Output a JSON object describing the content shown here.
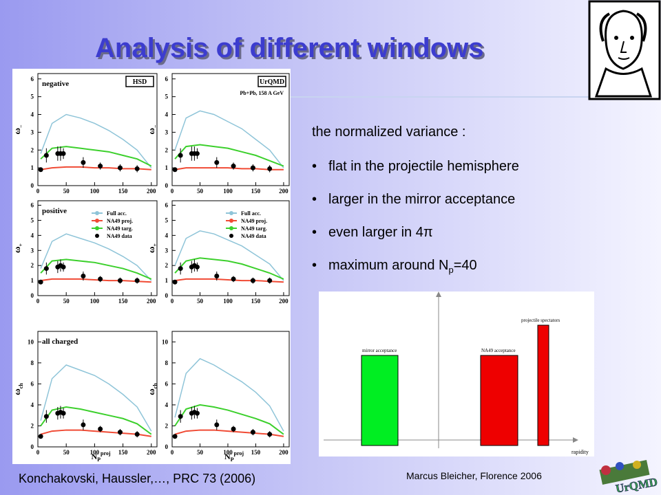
{
  "title": "Analysis of different windows",
  "intro": "the normalized variance :",
  "bullets": [
    {
      "text": "flat in the projectile hemisphere"
    },
    {
      "text": "larger in the mirror acceptance"
    },
    {
      "text": "even larger in 4π"
    },
    {
      "text": "maximum around N",
      "sub": "p",
      "tail": "=40"
    }
  ],
  "citation": "Konchakovski, Haussler,…, PRC 73 (2006)",
  "footer": "Marcus Bleicher, Florence 2006",
  "logo": "UrQMD",
  "diagram": {
    "mirror": "mirror acceptance",
    "na49": "NA49 acceptance",
    "spectators": "projectile spectators",
    "axis": "rapidity"
  },
  "figure": {
    "models": [
      "HSD",
      "UrQMD"
    ],
    "system": "Pb+Pb,  158 A GeV",
    "x_label": "N",
    "x_label_sub": "P",
    "x_label_sup": "proj",
    "xlim": [
      0,
      210
    ],
    "xticks": [
      0,
      50,
      100,
      150,
      200
    ],
    "x": [
      5,
      25,
      50,
      75,
      100,
      125,
      150,
      175,
      200
    ],
    "data_x": [
      5,
      15,
      35,
      40,
      45,
      80,
      110,
      145,
      175
    ],
    "series": [
      {
        "name": "Full acc.",
        "color": "#8ec4d8"
      },
      {
        "name": "NA49 proj.",
        "color": "#f04a34"
      },
      {
        "name": "NA49 targ.",
        "color": "#3cd02c"
      },
      {
        "name": "NA49 data",
        "color": "#000000"
      }
    ],
    "rows": [
      {
        "label": "negative",
        "y_label": "ω",
        "y_label_sub": "−",
        "ylim": [
          0,
          6.3
        ],
        "yticks": [
          0,
          1,
          2,
          3,
          4,
          5,
          6
        ],
        "legend": false,
        "panels": [
          {
            "series": [
              [
                1.8,
                3.5,
                4.0,
                3.8,
                3.5,
                3.1,
                2.6,
                2.0,
                1.0
              ],
              [
                0.9,
                1.0,
                1.05,
                1.05,
                1.0,
                1.0,
                0.95,
                0.95,
                0.9
              ],
              [
                1.5,
                2.1,
                2.2,
                2.1,
                2.0,
                1.9,
                1.7,
                1.5,
                1.1
              ],
              [
                0.9,
                1.7,
                1.8,
                1.8,
                1.8,
                1.3,
                1.1,
                1.0,
                0.95
              ]
            ],
            "err": [
              0.1,
              0.4,
              0.4,
              0.4,
              0.3,
              0.3,
              0.2,
              0.2,
              0.2
            ]
          },
          {
            "series": [
              [
                2.0,
                3.8,
                4.2,
                4.0,
                3.6,
                3.2,
                2.6,
                2.0,
                1.0
              ],
              [
                0.9,
                1.0,
                1.0,
                1.0,
                1.0,
                0.95,
                0.95,
                0.9,
                0.9
              ],
              [
                1.5,
                2.2,
                2.3,
                2.2,
                2.1,
                1.9,
                1.7,
                1.4,
                1.1
              ],
              [
                0.9,
                1.7,
                1.8,
                1.8,
                1.8,
                1.3,
                1.1,
                1.0,
                0.95
              ]
            ],
            "err": [
              0.1,
              0.4,
              0.4,
              0.4,
              0.3,
              0.3,
              0.2,
              0.2,
              0.2
            ]
          }
        ]
      },
      {
        "label": "positive",
        "y_label": "ω",
        "y_label_sub": "+",
        "ylim": [
          0,
          6.3
        ],
        "yticks": [
          0,
          1,
          2,
          3,
          4,
          5,
          6
        ],
        "legend": true,
        "panels": [
          {
            "series": [
              [
                1.8,
                3.6,
                4.1,
                3.8,
                3.5,
                3.1,
                2.6,
                2.0,
                1.0
              ],
              [
                1.0,
                1.1,
                1.1,
                1.1,
                1.05,
                1.0,
                1.0,
                0.95,
                0.9
              ],
              [
                1.5,
                2.3,
                2.4,
                2.3,
                2.2,
                2.0,
                1.8,
                1.5,
                1.1
              ],
              [
                0.9,
                1.8,
                1.9,
                2.0,
                1.9,
                1.3,
                1.1,
                1.0,
                1.0
              ]
            ],
            "err": [
              0.1,
              0.4,
              0.4,
              0.4,
              0.3,
              0.3,
              0.2,
              0.2,
              0.2
            ]
          },
          {
            "series": [
              [
                2.0,
                3.8,
                4.3,
                4.1,
                3.7,
                3.3,
                2.7,
                2.1,
                1.0
              ],
              [
                1.0,
                1.1,
                1.1,
                1.1,
                1.05,
                1.0,
                1.0,
                0.95,
                0.9
              ],
              [
                1.5,
                2.3,
                2.5,
                2.4,
                2.3,
                2.1,
                1.8,
                1.5,
                1.1
              ],
              [
                0.9,
                1.8,
                1.9,
                2.0,
                1.9,
                1.3,
                1.1,
                1.0,
                1.0
              ]
            ],
            "err": [
              0.1,
              0.4,
              0.4,
              0.4,
              0.3,
              0.3,
              0.2,
              0.2,
              0.2
            ]
          }
        ]
      },
      {
        "label": "all charged",
        "y_label": "ω",
        "y_label_sub": "ch",
        "ylim": [
          0,
          11
        ],
        "yticks": [
          0,
          2,
          4,
          6,
          8,
          10
        ],
        "legend": false,
        "panels": [
          {
            "series": [
              [
                2.5,
                6.5,
                7.8,
                7.3,
                6.8,
                6.0,
                5.0,
                3.8,
                1.5
              ],
              [
                1.2,
                1.5,
                1.6,
                1.6,
                1.5,
                1.4,
                1.3,
                1.2,
                1.0
              ],
              [
                2.0,
                3.5,
                3.8,
                3.6,
                3.3,
                3.0,
                2.7,
                2.2,
                1.2
              ],
              [
                1.0,
                2.9,
                3.2,
                3.3,
                3.2,
                2.1,
                1.7,
                1.4,
                1.2
              ]
            ],
            "err": [
              0.1,
              0.6,
              0.6,
              0.6,
              0.5,
              0.5,
              0.3,
              0.3,
              0.3
            ]
          },
          {
            "series": [
              [
                2.8,
                7.0,
                8.4,
                7.8,
                7.0,
                6.2,
                5.2,
                3.9,
                1.5
              ],
              [
                1.2,
                1.5,
                1.6,
                1.6,
                1.5,
                1.4,
                1.3,
                1.2,
                1.0
              ],
              [
                2.0,
                3.6,
                4.0,
                3.8,
                3.5,
                3.1,
                2.7,
                2.2,
                1.2
              ],
              [
                1.0,
                2.9,
                3.2,
                3.3,
                3.2,
                2.1,
                1.7,
                1.4,
                1.2
              ]
            ],
            "err": [
              0.1,
              0.6,
              0.6,
              0.6,
              0.5,
              0.5,
              0.3,
              0.3,
              0.3
            ]
          }
        ]
      }
    ]
  }
}
